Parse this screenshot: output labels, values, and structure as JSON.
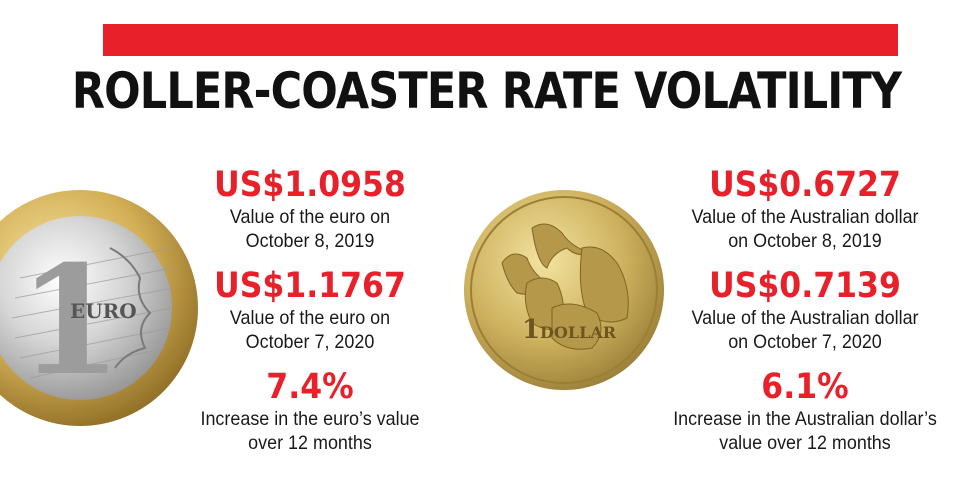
{
  "header": {
    "title": "ROLLER-COASTER RATE VOLATILITY",
    "accent_color": "#e8202a"
  },
  "euro": {
    "coin": {
      "icon": "euro-coin-icon",
      "numeral": "1",
      "label": "EURO"
    },
    "stats": [
      {
        "value": "US$1.0958",
        "desc_line1": "Value of the euro on",
        "desc_line2": "October 8, 2019"
      },
      {
        "value": "US$1.1767",
        "desc_line1": "Value of the euro on",
        "desc_line2": "October 7, 2020"
      },
      {
        "value": "7.4%",
        "desc_line1": "Increase in the euro’s value",
        "desc_line2": "over 12 months"
      }
    ]
  },
  "aud": {
    "coin": {
      "icon": "australian-dollar-coin-icon",
      "numeral": "1",
      "label": "DOLLAR"
    },
    "stats": [
      {
        "value": "US$0.6727",
        "desc_line1": "Value of the Australian dollar",
        "desc_line2": "on October 8, 2019"
      },
      {
        "value": "US$0.7139",
        "desc_line1": "Value of the Australian dollar",
        "desc_line2": "on October 7, 2020"
      },
      {
        "value": "6.1%",
        "desc_line1": "Increase in the Australian dollar’s",
        "desc_line2": "value over 12 months"
      }
    ]
  }
}
